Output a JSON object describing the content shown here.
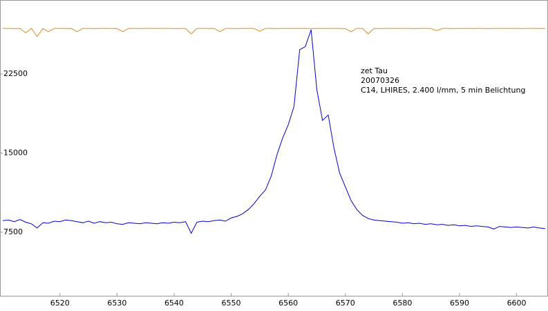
{
  "chart_data": {
    "type": "line",
    "annotations": [
      "zet Tau",
      "20070326",
      "C14, LHIRES, 2.400 l/mm, 5 min Belichtung"
    ],
    "x": [
      6510,
      6511,
      6512,
      6513,
      6514,
      6515,
      6516,
      6517,
      6518,
      6519,
      6520,
      6521,
      6522,
      6523,
      6524,
      6525,
      6526,
      6527,
      6528,
      6529,
      6530,
      6531,
      6532,
      6533,
      6534,
      6535,
      6536,
      6537,
      6538,
      6539,
      6540,
      6541,
      6542,
      6543,
      6544,
      6545,
      6546,
      6547,
      6548,
      6549,
      6550,
      6551,
      6552,
      6553,
      6554,
      6555,
      6556,
      6557,
      6558,
      6559,
      6560,
      6561,
      6562,
      6563,
      6564,
      6565,
      6566,
      6567,
      6568,
      6569,
      6570,
      6571,
      6572,
      6573,
      6574,
      6575,
      6576,
      6577,
      6578,
      6579,
      6580,
      6581,
      6582,
      6583,
      6584,
      6585,
      6586,
      6587,
      6588,
      6589,
      6590,
      6591,
      6592,
      6593,
      6594,
      6595,
      6596,
      6597,
      6598,
      6599,
      6600,
      6601,
      6602,
      6603,
      6604,
      6605
    ],
    "series": [
      {
        "color": "#0000cc",
        "values": [
          8600,
          8650,
          8500,
          8700,
          8450,
          8300,
          7900,
          8400,
          8350,
          8550,
          8500,
          8650,
          8600,
          8500,
          8400,
          8550,
          8350,
          8500,
          8400,
          8450,
          8300,
          8250,
          8400,
          8350,
          8300,
          8400,
          8350,
          8300,
          8400,
          8350,
          8450,
          8400,
          8500,
          7400,
          8450,
          8550,
          8500,
          8600,
          8650,
          8550,
          8850,
          9000,
          9250,
          9650,
          10200,
          10900,
          11500,
          12800,
          14800,
          16400,
          17700,
          19400,
          24800,
          25100,
          26700,
          21000,
          18100,
          18600,
          15500,
          13100,
          11800,
          10500,
          9650,
          9100,
          8800,
          8650,
          8600,
          8550,
          8500,
          8450,
          8350,
          8400,
          8300,
          8350,
          8250,
          8300,
          8200,
          8250,
          8150,
          8200,
          8100,
          8150,
          8050,
          8100,
          8050,
          8000,
          7800,
          8050,
          8000,
          7950,
          8000,
          7950,
          7900,
          8000,
          7900,
          7850
        ]
      },
      {
        "color": "#e08a1e",
        "values": [
          26820,
          26820,
          26800,
          26820,
          26400,
          26820,
          26050,
          26800,
          26500,
          26820,
          26820,
          26810,
          26820,
          26500,
          26820,
          26820,
          26800,
          26820,
          26820,
          26810,
          26820,
          26500,
          26820,
          26820,
          26800,
          26820,
          26820,
          26810,
          26820,
          26820,
          26800,
          26820,
          26820,
          26300,
          26820,
          26820,
          26810,
          26820,
          26500,
          26820,
          26820,
          26800,
          26820,
          26820,
          26810,
          26550,
          26820,
          26820,
          26800,
          26820,
          26820,
          26810,
          26820,
          26820,
          26800,
          26820,
          26820,
          26810,
          26820,
          26820,
          26800,
          26500,
          26820,
          26820,
          26300,
          26820,
          26800,
          26820,
          26820,
          26810,
          26820,
          26820,
          26800,
          26820,
          26820,
          26810,
          26600,
          26820,
          26820,
          26800,
          26820,
          26820,
          26810,
          26820,
          26820,
          26800,
          26820,
          26820,
          26810,
          26820,
          26820,
          26800,
          26820,
          26820,
          26810,
          26820
        ]
      }
    ],
    "xlim": [
      6509.5,
      6605.5
    ],
    "ylim": [
      1474,
      29509
    ],
    "xticks": [
      6520,
      6530,
      6540,
      6550,
      6560,
      6570,
      6580,
      6590,
      6600
    ],
    "yticks": [
      7500,
      15000,
      22500
    ]
  }
}
